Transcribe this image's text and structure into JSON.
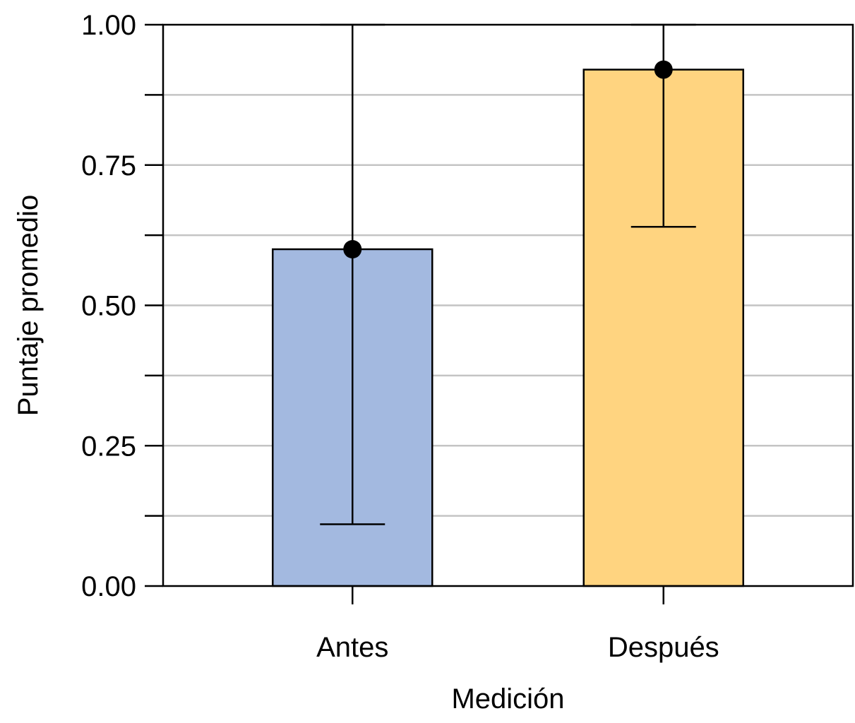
{
  "chart_data": {
    "type": "bar",
    "title": "",
    "xlabel": "Medición",
    "ylabel": "Puntaje promedio",
    "categories": [
      "Antes",
      "Después"
    ],
    "values": [
      0.6,
      0.92
    ],
    "error_low": [
      0.11,
      0.64
    ],
    "error_high": [
      1.0,
      1.0
    ],
    "colors": [
      "#a3b9e0",
      "#ffd480"
    ],
    "ylim": [
      0,
      1
    ],
    "yticks": [
      0,
      0.25,
      0.5,
      0.75,
      1
    ],
    "ytick_labels": [
      "0.00",
      "0.25",
      "0.50",
      "0.75",
      "1.00"
    ],
    "minor_yticks": [
      0.125,
      0.375,
      0.625,
      0.875
    ],
    "grid": true,
    "grid_color": "#c4c4c4"
  }
}
